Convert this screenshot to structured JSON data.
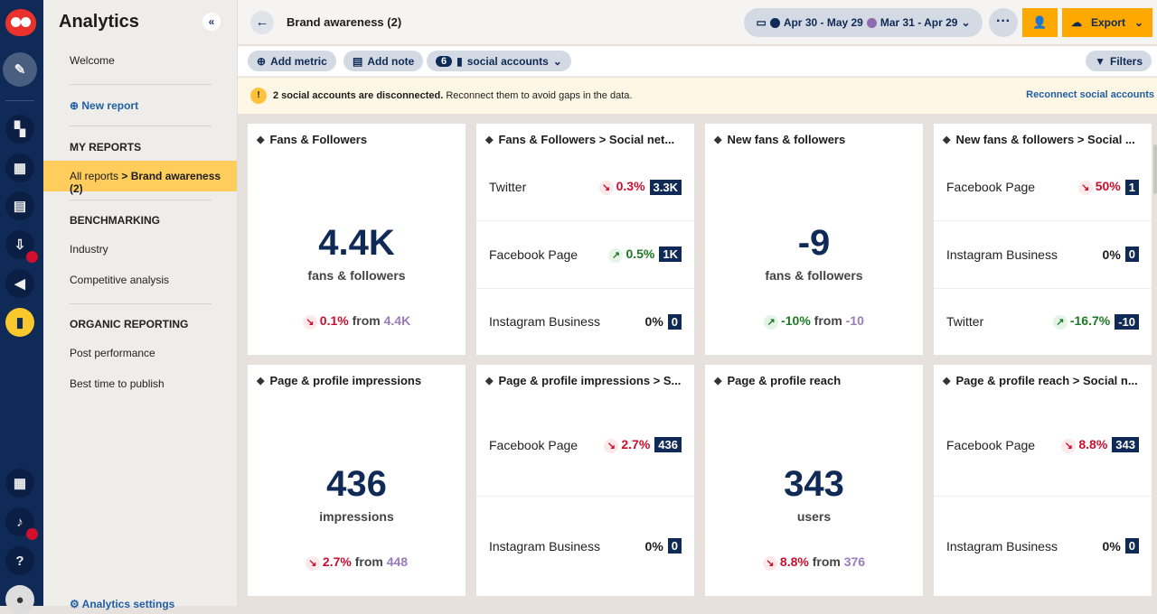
{
  "rail": {
    "icons": [
      "owl-logo",
      "compose-icon",
      "content-icon",
      "dashboard-icon",
      "calendar-icon",
      "inbox-icon",
      "megaphone-icon",
      "analytics-icon",
      "apps-icon",
      "bell-icon",
      "help-icon",
      "avatar"
    ]
  },
  "nav": {
    "title": "Analytics",
    "welcome": "Welcome",
    "new_report": "New report",
    "my_reports": "MY REPORTS",
    "selected_prefix": "All reports ",
    "selected_name": "> Brand awareness (2)",
    "benchmarking": "BENCHMARKING",
    "industry": "Industry",
    "competitive": "Competitive analysis",
    "organic": "ORGANIC REPORTING",
    "post_perf": "Post performance",
    "best_time": "Best time to publish",
    "settings": "Analytics settings"
  },
  "header": {
    "title": "Brand awareness (2)",
    "current_range": "Apr 30 - May 29",
    "compare_range": "Mar 31 - Apr 29",
    "current_color": "#0f2a56",
    "compare_color": "#8e6bb0",
    "export": "Export"
  },
  "toolbar": {
    "add_metric": "Add metric",
    "add_note": "Add note",
    "accounts_count": "6",
    "accounts_label": "social accounts",
    "filters": "Filters"
  },
  "banner": {
    "bold": "2 social accounts are disconnected.",
    "text": " Reconnect them to avoid gaps in the data.",
    "link": "Reconnect social accounts"
  },
  "cards": [
    {
      "title": "Fans & Followers",
      "type": "summary",
      "value": "4.4K",
      "unit": "fans & followers",
      "dir": "down",
      "change": "0.1%",
      "from": "from",
      "prev": "4.4K"
    },
    {
      "title": "Fans & Followers > Social net...",
      "type": "breakdown",
      "rows": [
        {
          "name": "Twitter",
          "dir": "down",
          "pct": "0.3%",
          "value": "3.3K"
        },
        {
          "name": "Facebook Page",
          "dir": "up",
          "pct": "0.5%",
          "value": "1K"
        },
        {
          "name": "Instagram Business",
          "dir": "none",
          "pct": "0%",
          "value": "0"
        }
      ]
    },
    {
      "title": "New fans & followers",
      "type": "summary",
      "value": "-9",
      "unit": "fans & followers",
      "dir": "up",
      "change": "-10%",
      "from": "from",
      "prev": "-10"
    },
    {
      "title": "New fans & followers > Social ...",
      "type": "breakdown",
      "rows": [
        {
          "name": "Facebook Page",
          "dir": "down",
          "pct": "50%",
          "value": "1"
        },
        {
          "name": "Instagram Business",
          "dir": "none",
          "pct": "0%",
          "value": "0"
        },
        {
          "name": "Twitter",
          "dir": "up",
          "pct": "-16.7%",
          "value": "-10"
        }
      ]
    },
    {
      "title": "Page & profile impressions",
      "type": "summary",
      "value": "436",
      "unit": "impressions",
      "dir": "down",
      "change": "2.7%",
      "from": "from",
      "prev": "448"
    },
    {
      "title": "Page & profile impressions > S...",
      "type": "breakdown",
      "rows": [
        {
          "name": "Facebook Page",
          "dir": "down",
          "pct": "2.7%",
          "value": "436"
        },
        {
          "name": "Instagram Business",
          "dir": "none",
          "pct": "0%",
          "value": "0"
        }
      ]
    },
    {
      "title": "Page & profile reach",
      "type": "summary",
      "value": "343",
      "unit": "users",
      "dir": "down",
      "change": "8.8%",
      "from": "from",
      "prev": "376"
    },
    {
      "title": "Page & profile reach > Social n...",
      "type": "breakdown",
      "rows": [
        {
          "name": "Facebook Page",
          "dir": "down",
          "pct": "8.8%",
          "value": "343"
        },
        {
          "name": "Instagram Business",
          "dir": "none",
          "pct": "0%",
          "value": "0"
        }
      ]
    }
  ]
}
